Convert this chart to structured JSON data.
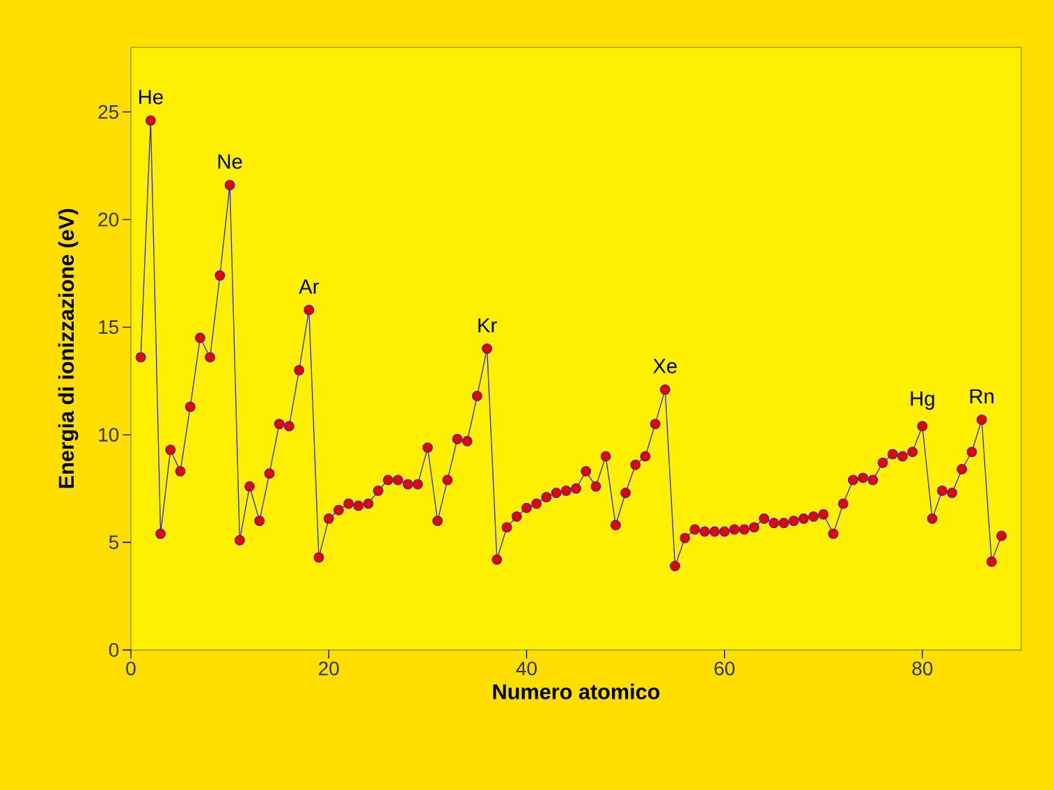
{
  "chart_data": {
    "type": "line",
    "xlabel": "Numero atomico",
    "ylabel": "Energia di ionizzazione (eV)",
    "x": [
      1,
      2,
      3,
      4,
      5,
      6,
      7,
      8,
      9,
      10,
      11,
      12,
      13,
      14,
      15,
      16,
      17,
      18,
      19,
      20,
      21,
      22,
      23,
      24,
      25,
      26,
      27,
      28,
      29,
      30,
      31,
      32,
      33,
      34,
      35,
      36,
      37,
      38,
      39,
      40,
      41,
      42,
      43,
      44,
      45,
      46,
      47,
      48,
      49,
      50,
      51,
      52,
      53,
      54,
      55,
      56,
      57,
      58,
      59,
      60,
      61,
      62,
      63,
      64,
      65,
      66,
      67,
      68,
      69,
      70,
      71,
      72,
      73,
      74,
      75,
      76,
      77,
      78,
      79,
      80,
      81,
      82,
      83,
      84,
      85,
      86,
      87,
      88
    ],
    "series": [
      {
        "color": "#2a2ad0",
        "values": [
          13.6,
          24.6,
          5.4,
          9.3,
          8.3,
          11.3,
          14.5,
          13.6,
          17.4,
          21.6,
          5.1,
          7.6,
          6.0,
          8.2,
          10.5,
          10.4,
          13.0,
          15.8,
          4.3,
          6.1,
          6.5,
          6.8,
          6.7,
          6.8,
          7.4,
          7.9,
          7.9,
          7.7,
          7.7,
          9.4,
          6.0,
          7.9,
          9.8,
          9.7,
          11.8,
          14.0,
          4.2,
          5.7,
          6.2,
          6.6,
          6.8,
          7.1,
          7.3,
          7.4,
          7.5,
          8.3,
          7.6,
          9.0,
          5.8,
          7.3,
          8.6,
          9.0,
          10.5,
          12.1,
          3.9,
          5.2,
          5.6,
          5.5,
          5.5,
          5.5,
          5.6,
          5.6,
          5.7,
          6.1,
          5.9,
          5.9,
          6.0,
          6.1,
          6.2,
          6.3,
          5.4,
          6.8,
          7.9,
          8.0,
          7.9,
          8.7,
          9.1,
          9.0,
          9.2,
          10.4,
          6.1,
          7.4,
          7.3,
          8.4,
          9.2,
          10.7,
          4.1,
          5.3
        ]
      }
    ],
    "marker": "circle",
    "xlim": [
      0,
      90
    ],
    "ylim": [
      0,
      28
    ],
    "xticks": [
      0,
      20,
      40,
      60,
      80
    ],
    "yticks": [
      0,
      5,
      10,
      15,
      20,
      25
    ],
    "annotations": [
      {
        "text": "He",
        "x": 2,
        "y": 24.6
      },
      {
        "text": "Ne",
        "x": 10,
        "y": 21.6
      },
      {
        "text": "Ar",
        "x": 18,
        "y": 15.8
      },
      {
        "text": "Kr",
        "x": 36,
        "y": 14.0
      },
      {
        "text": "Xe",
        "x": 54,
        "y": 12.1
      },
      {
        "text": "Hg",
        "x": 80,
        "y": 10.4
      },
      {
        "text": "Rn",
        "x": 86,
        "y": 10.7
      }
    ]
  }
}
